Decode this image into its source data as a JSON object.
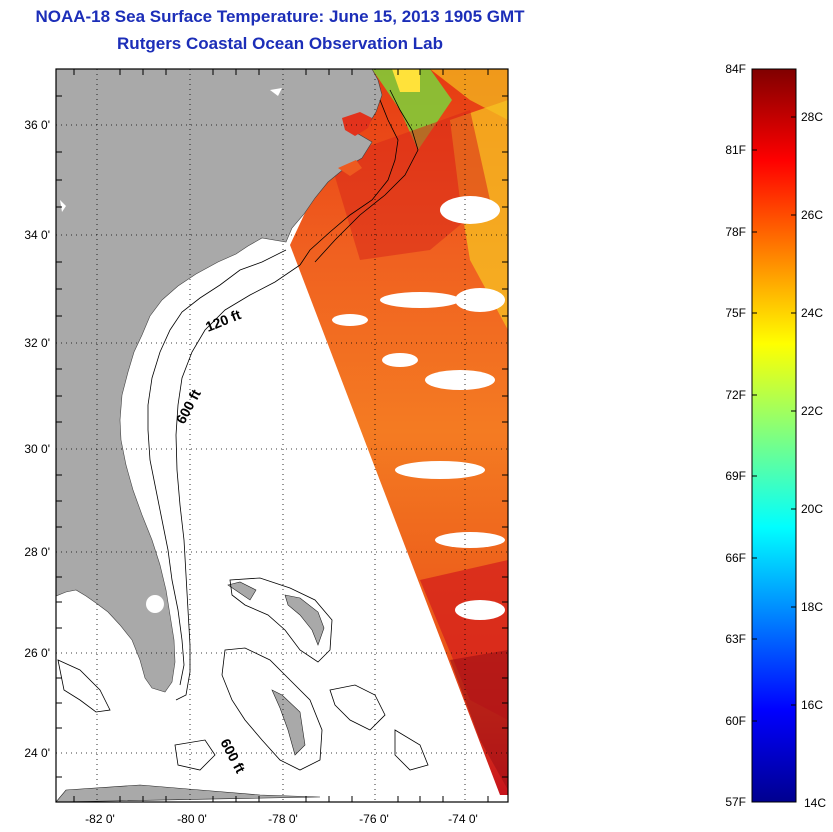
{
  "title_line1": "NOAA-18 Sea Surface Temperature:  June 15, 2013 1905 GMT",
  "title_line2": "Rutgers Coastal Ocean Observation Lab",
  "map": {
    "lat_ticks": [
      "24 0'",
      "26 0'",
      "28 0'",
      "30 0'",
      "32 0'",
      "34 0'",
      "36 0'"
    ],
    "lon_ticks": [
      "-82 0'",
      "-80 0'",
      "-78 0'",
      "-76 0'",
      "-74 0'"
    ],
    "depth_labels": [
      "120 ft",
      "600 ft",
      "600 ft"
    ],
    "colors": {
      "land": "#a9a9a9",
      "water_nodata": "#ffffff",
      "contour": "#000000"
    }
  },
  "colorbar": {
    "f_labels": [
      "84F",
      "81F",
      "78F",
      "75F",
      "72F",
      "69F",
      "66F",
      "63F",
      "60F",
      "57F"
    ],
    "c_labels": [
      "28C",
      "26C",
      "24C",
      "22C",
      "20C",
      "18C",
      "16C",
      "14C"
    ],
    "colormap": "jet",
    "range_F": [
      57,
      84
    ],
    "range_C": [
      14,
      29
    ]
  }
}
